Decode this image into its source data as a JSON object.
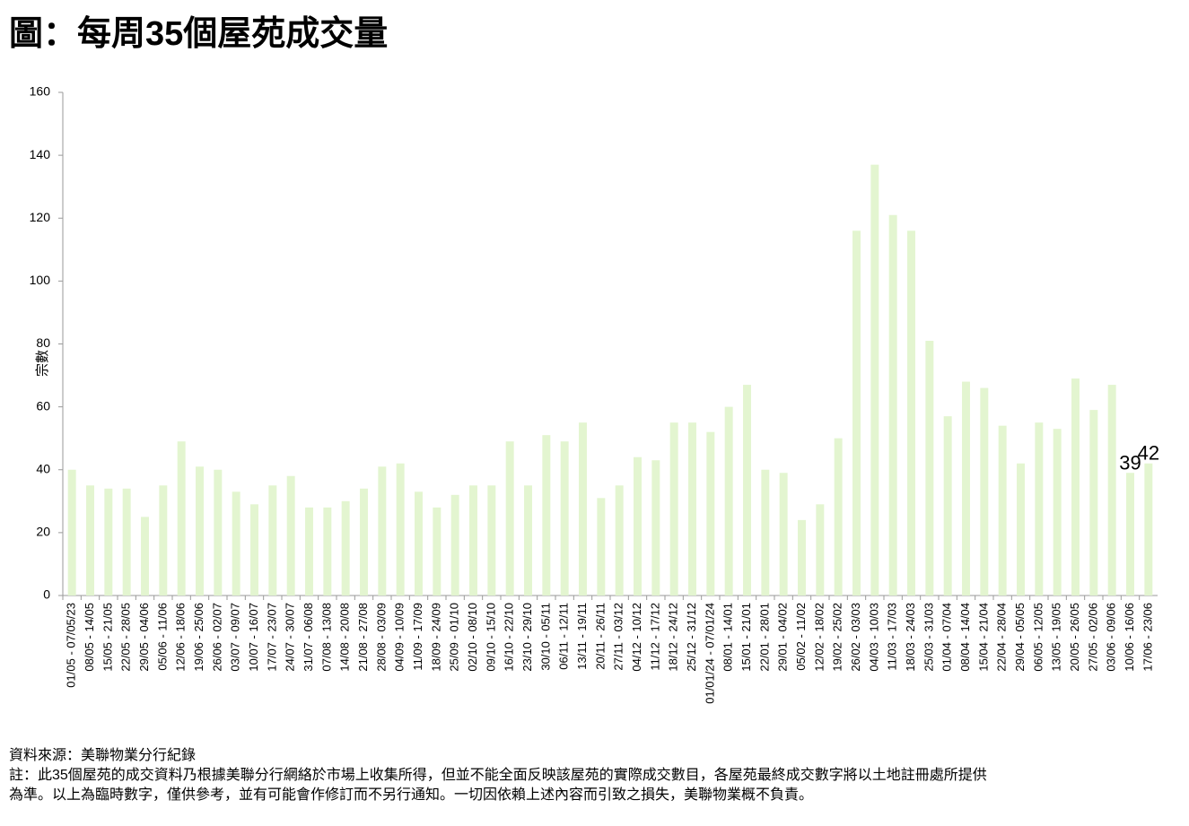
{
  "chart_data": {
    "type": "bar",
    "title": "圖：每周35個屋苑成交量",
    "y_label": "宗數",
    "source": "資料來源：美聯物業分行紀錄",
    "notes": [
      "註：此35個屋苑的成交資料乃根據美聯分行網絡於市場上收集所得，但並不能全面反映該屋苑的實際成交數目，各屋苑最終成交數字將以土地註冊處所提供",
      "為準。以上為臨時數字，僅供參考，並有可能會作修訂而不另行通知。一切因依賴上述內容而引致之損失，美聯物業概不負責。"
    ],
    "categories": [
      "01/05 - 07/05/23",
      "08/05 - 14/05",
      "15/05 - 21/05",
      "22/05 - 28/05",
      "29/05 - 04/06",
      "05/06 - 11/06",
      "12/06 - 18/06",
      "19/06 - 25/06",
      "26/06 - 02/07",
      "03/07 - 09/07",
      "10/07 - 16/07",
      "17/07 - 23/07",
      "24/07 - 30/07",
      "31/07 - 06/08",
      "07/08 - 13/08",
      "14/08 - 20/08",
      "21/08 - 27/08",
      "28/08 - 03/09",
      "04/09 - 10/09",
      "11/09 - 17/09",
      "18/09 - 24/09",
      "25/09 - 01/10",
      "02/10 - 08/10",
      "09/10 - 15/10",
      "16/10 - 22/10",
      "23/10 - 29/10",
      "30/10 - 05/11",
      "06/11 - 12/11",
      "13/11 - 19/11",
      "20/11 - 26/11",
      "27/11 - 03/12",
      "04/12 - 10/12",
      "11/12 - 17/12",
      "18/12 - 24/12",
      "25/12 - 31/12",
      "01/01/24 - 07/01/24",
      "08/01 - 14/01",
      "15/01 - 21/01",
      "22/01 - 28/01",
      "29/01 - 04/02",
      "05/02 - 11/02",
      "12/02 - 18/02",
      "19/02 - 25/02",
      "26/02 - 03/03",
      "04/03 - 10/03",
      "11/03 - 17/03",
      "18/03 - 24/03",
      "25/03 - 31/03",
      "01/04 - 07/04",
      "08/04 - 14/04",
      "15/04 - 21/04",
      "22/04 - 28/04",
      "29/04 - 05/05",
      "06/05 - 12/05",
      "13/05 - 19/05",
      "20/05 - 26/05",
      "27/05 - 02/06",
      "03/06 - 09/06",
      "10/06 - 16/06",
      "17/06 - 23/06"
    ],
    "values": [
      40,
      35,
      34,
      34,
      25,
      35,
      49,
      41,
      40,
      33,
      29,
      35,
      38,
      28,
      28,
      30,
      34,
      41,
      42,
      33,
      28,
      32,
      35,
      35,
      49,
      35,
      51,
      49,
      55,
      31,
      35,
      44,
      43,
      55,
      55,
      52,
      60,
      67,
      40,
      39,
      24,
      29,
      50,
      116,
      137,
      121,
      116,
      81,
      57,
      68,
      66,
      54,
      42,
      55,
      53,
      69,
      59,
      67,
      39,
      42
    ],
    "value_labels": [
      null,
      null,
      null,
      null,
      null,
      null,
      null,
      null,
      null,
      null,
      null,
      null,
      null,
      null,
      null,
      null,
      null,
      null,
      null,
      null,
      null,
      null,
      null,
      null,
      null,
      null,
      null,
      null,
      null,
      null,
      null,
      null,
      null,
      null,
      null,
      null,
      null,
      null,
      null,
      null,
      null,
      null,
      null,
      null,
      null,
      null,
      null,
      null,
      null,
      null,
      null,
      null,
      null,
      null,
      null,
      null,
      null,
      null,
      "39",
      "42"
    ],
    "color": "#e3f5d0",
    "ylim": [
      0,
      160
    ],
    "yticks": [
      0,
      20,
      40,
      60,
      80,
      100,
      120,
      140,
      160
    ],
    "grid": false
  }
}
